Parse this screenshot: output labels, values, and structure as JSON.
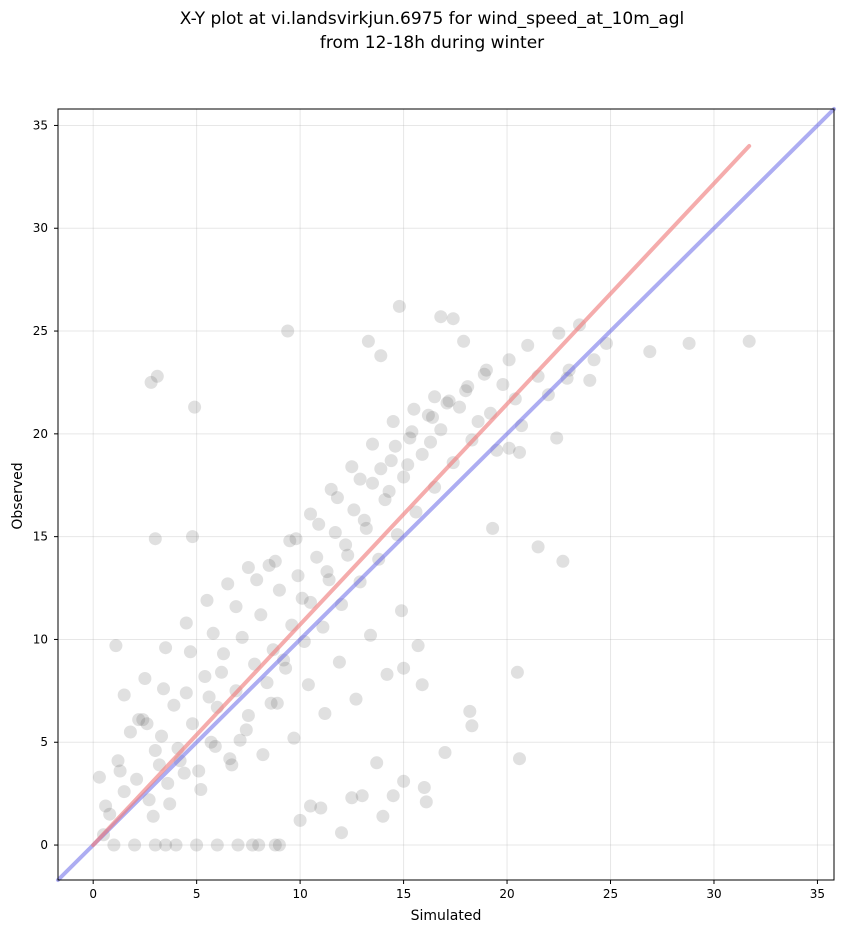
{
  "chart_data": {
    "type": "scatter",
    "title": "X-Y plot at vi.landsvirkjun.6975 for wind_speed_at_10m_agl",
    "subtitle": "from 12-18h during winter",
    "xlabel": "Simulated",
    "ylabel": "Observed",
    "xlim": [
      -1.7,
      35.8
    ],
    "ylim": [
      -1.7,
      35.8
    ],
    "xticks": [
      0,
      5,
      10,
      15,
      20,
      25,
      30,
      35
    ],
    "yticks": [
      0,
      5,
      10,
      15,
      20,
      25,
      30,
      35
    ],
    "grid": true,
    "colors": {
      "points": "#555555",
      "regression_line": "#f08080",
      "identity_line": "#6a6ae8"
    },
    "regression_line": {
      "x": [
        0,
        31.7
      ],
      "y": [
        0,
        34.0
      ]
    },
    "identity_line": {
      "x": [
        -1.7,
        35.8
      ],
      "y": [
        -1.7,
        35.8
      ]
    },
    "points": {
      "x": [
        2.8,
        3.1,
        9.4,
        4.9,
        1.1,
        3.0,
        4.8,
        13.3,
        14.8,
        13.9,
        16.8,
        17.4,
        17.9,
        18.2,
        18.3,
        19.3,
        20.1,
        20.5,
        21.5,
        22.4,
        22.7,
        22.9,
        24.2,
        24.8,
        26.9,
        28.8,
        31.7,
        20.6,
        20.6,
        16.1,
        15.9,
        15.0,
        14.5,
        13.7,
        12.5,
        10.5,
        8.8,
        7.7,
        3.5,
        0.5,
        0.3,
        0.8,
        1.2,
        1.5,
        1.8,
        2.1,
        2.4,
        2.7,
        3.0,
        3.3,
        3.6,
        3.9,
        4.2,
        4.5,
        4.8,
        5.1,
        5.4,
        5.7,
        6.0,
        6.3,
        6.6,
        6.9,
        7.2,
        7.5,
        7.8,
        8.1,
        8.4,
        8.7,
        9.0,
        9.3,
        9.6,
        9.9,
        10.2,
        10.5,
        10.8,
        11.1,
        11.4,
        11.7,
        12.0,
        12.3,
        12.6,
        12.9,
        13.2,
        13.5,
        13.8,
        14.1,
        14.4,
        14.7,
        15.0,
        15.3,
        15.6,
        15.9,
        16.2,
        16.5,
        16.8,
        17.1,
        17.4,
        17.7,
        18.0,
        18.3,
        18.6,
        18.9,
        19.2,
        19.5,
        19.8,
        20.1,
        20.4,
        20.7,
        21.0,
        21.5,
        22.0,
        22.5,
        23.0,
        23.5,
        24.0,
        1.0,
        2.0,
        3.0,
        4.0,
        5.0,
        6.0,
        7.0,
        8.0,
        9.0,
        10.0,
        11.0,
        12.0,
        13.0,
        14.0,
        15.0,
        16.0,
        17.0,
        2.5,
        3.5,
        4.5,
        5.5,
        6.5,
        7.5,
        8.5,
        9.5,
        10.5,
        11.5,
        12.5,
        13.5,
        14.5,
        15.5,
        16.5,
        1.5,
        2.2,
        2.9,
        3.7,
        4.4,
        5.2,
        5.9,
        6.7,
        7.4,
        8.2,
        8.9,
        9.7,
        10.4,
        11.2,
        11.9,
        12.7,
        13.4,
        14.2,
        14.9,
        15.7,
        3.2,
        4.1,
        5.6,
        6.2,
        7.1,
        8.6,
        9.2,
        10.1,
        11.3,
        12.2,
        13.1,
        14.3,
        15.2,
        16.3,
        0.6,
        1.3,
        2.6,
        3.4,
        4.7,
        5.8,
        6.9,
        7.9,
        8.8,
        9.8,
        10.9,
        11.8,
        12.9,
        13.9,
        14.6,
        15.4,
        16.4,
        17.2,
        18.1,
        19.0
      ],
      "y": [
        22.5,
        22.8,
        25.0,
        21.3,
        9.7,
        14.9,
        15.0,
        24.5,
        26.2,
        23.8,
        25.7,
        25.6,
        24.5,
        6.5,
        5.8,
        15.4,
        19.3,
        8.4,
        14.5,
        19.8,
        13.8,
        22.7,
        23.6,
        24.4,
        24.0,
        24.4,
        24.5,
        4.2,
        19.1,
        2.1,
        7.8,
        8.6,
        2.4,
        4.0,
        2.3,
        1.9,
        0.0,
        0.0,
        0.0,
        0.5,
        3.3,
        1.5,
        4.1,
        2.6,
        5.5,
        3.2,
        6.1,
        2.2,
        4.6,
        5.3,
        3.0,
        6.8,
        4.1,
        7.4,
        5.9,
        3.6,
        8.2,
        5.0,
        6.7,
        9.3,
        4.2,
        7.5,
        10.1,
        6.3,
        8.8,
        11.2,
        7.9,
        9.5,
        12.4,
        8.6,
        10.7,
        13.1,
        9.9,
        11.8,
        14.0,
        10.6,
        12.9,
        15.2,
        11.7,
        14.1,
        16.3,
        12.8,
        15.4,
        17.6,
        13.9,
        16.8,
        18.7,
        15.1,
        17.9,
        19.8,
        16.2,
        19.0,
        20.9,
        17.4,
        20.2,
        21.5,
        18.6,
        21.3,
        22.1,
        19.7,
        20.6,
        22.9,
        21.0,
        19.2,
        22.4,
        23.6,
        21.7,
        20.4,
        24.3,
        22.8,
        21.9,
        24.9,
        23.1,
        25.3,
        22.6,
        0.0,
        0.0,
        0.0,
        0.0,
        0.0,
        0.0,
        0.0,
        0.0,
        0.0,
        1.2,
        1.8,
        0.6,
        2.4,
        1.4,
        3.1,
        2.8,
        4.5,
        8.1,
        9.6,
        10.8,
        11.9,
        12.7,
        13.5,
        13.6,
        14.8,
        16.1,
        17.3,
        18.4,
        19.5,
        20.6,
        21.2,
        21.8,
        7.3,
        6.1,
        1.4,
        2.0,
        3.5,
        2.7,
        4.8,
        3.9,
        5.6,
        4.4,
        6.9,
        5.2,
        7.8,
        6.4,
        8.9,
        7.1,
        10.2,
        8.3,
        11.4,
        9.7,
        3.9,
        4.7,
        7.2,
        8.4,
        5.1,
        6.9,
        9.0,
        12.0,
        13.3,
        14.6,
        15.8,
        17.2,
        18.5,
        19.6,
        1.9,
        3.6,
        5.9,
        7.6,
        9.4,
        10.3,
        11.6,
        12.9,
        13.8,
        14.9,
        15.6,
        16.9,
        17.8,
        18.3,
        19.4,
        20.1,
        20.8,
        21.6,
        22.3,
        23.1
      ]
    }
  }
}
